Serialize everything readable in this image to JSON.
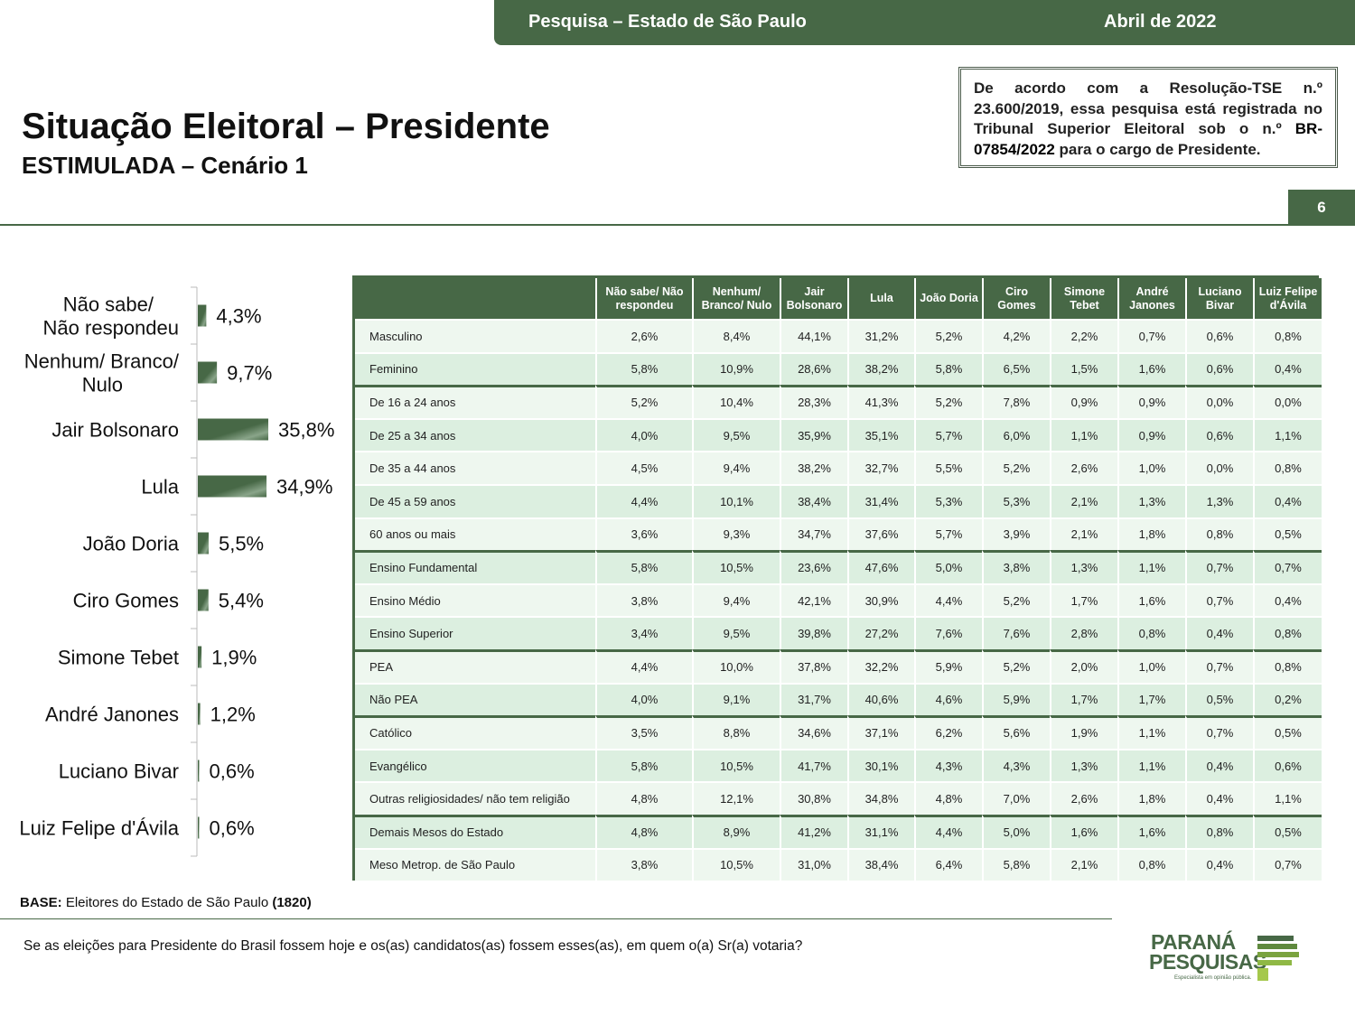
{
  "header": {
    "survey": "Pesquisa – Estado de São Paulo",
    "date": "Abril de 2022"
  },
  "title": "Situação Eleitoral – Presidente",
  "subtitle": "ESTIMULADA – Cenário 1",
  "tse": {
    "text1": "De acordo com a Resolução-TSE n.º 23.600/2019, essa pesquisa está registrada no Tribunal Superior Eleitoral sob o n.º ",
    "number": "BR-07854/2022",
    "text2": " para o cargo de Presidente."
  },
  "page_number": "6",
  "chart_data": {
    "type": "bar",
    "orientation": "horizontal",
    "categories": [
      [
        "Não sabe/",
        "Não respondeu"
      ],
      [
        "Nenhum/ Branco/",
        "Nulo"
      ],
      [
        "Jair Bolsonaro"
      ],
      [
        "Lula"
      ],
      [
        "João Doria"
      ],
      [
        "Ciro Gomes"
      ],
      [
        "Simone Tebet"
      ],
      [
        "André Janones"
      ],
      [
        "Luciano Bivar"
      ],
      [
        "Luiz Felipe d'Ávila"
      ]
    ],
    "values": [
      4.3,
      9.7,
      35.8,
      34.9,
      5.5,
      5.4,
      1.9,
      1.2,
      0.6,
      0.6
    ],
    "value_labels": [
      "4,3%",
      "9,7%",
      "35,8%",
      "34,9%",
      "5,5%",
      "5,4%",
      "1,9%",
      "1,2%",
      "0,6%",
      "0,6%"
    ],
    "bar_color": "#476846"
  },
  "table": {
    "columns": [
      [
        "Não sabe/ Não",
        "respondeu"
      ],
      [
        "Nenhum/",
        "Branco/ Nulo"
      ],
      [
        "Jair",
        "Bolsonaro"
      ],
      [
        "Lula"
      ],
      [
        "João Doria"
      ],
      [
        "Ciro",
        "Gomes"
      ],
      [
        "Simone",
        "Tebet"
      ],
      [
        "André",
        "Janones"
      ],
      [
        "Luciano",
        "Bivar"
      ],
      [
        "Luiz Felipe",
        "d'Ávila"
      ]
    ],
    "rows": [
      {
        "label": "Masculino",
        "values": [
          "2,6%",
          "8,4%",
          "44,1%",
          "31,2%",
          "5,2%",
          "4,2%",
          "2,2%",
          "0,7%",
          "0,6%",
          "0,8%"
        ]
      },
      {
        "label": "Feminino",
        "values": [
          "5,8%",
          "10,9%",
          "28,6%",
          "38,2%",
          "5,8%",
          "6,5%",
          "1,5%",
          "1,6%",
          "0,6%",
          "0,4%"
        ]
      },
      {
        "label": "De 16 a 24 anos",
        "group_start": true,
        "values": [
          "5,2%",
          "10,4%",
          "28,3%",
          "41,3%",
          "5,2%",
          "7,8%",
          "0,9%",
          "0,9%",
          "0,0%",
          "0,0%"
        ]
      },
      {
        "label": "De 25 a 34 anos",
        "values": [
          "4,0%",
          "9,5%",
          "35,9%",
          "35,1%",
          "5,7%",
          "6,0%",
          "1,1%",
          "0,9%",
          "0,6%",
          "1,1%"
        ]
      },
      {
        "label": "De 35 a 44 anos",
        "values": [
          "4,5%",
          "9,4%",
          "38,2%",
          "32,7%",
          "5,5%",
          "5,2%",
          "2,6%",
          "1,0%",
          "0,0%",
          "0,8%"
        ]
      },
      {
        "label": "De 45 a 59 anos",
        "values": [
          "4,4%",
          "10,1%",
          "38,4%",
          "31,4%",
          "5,3%",
          "5,3%",
          "2,1%",
          "1,3%",
          "1,3%",
          "0,4%"
        ]
      },
      {
        "label": "60 anos ou mais",
        "values": [
          "3,6%",
          "9,3%",
          "34,7%",
          "37,6%",
          "5,7%",
          "3,9%",
          "2,1%",
          "1,8%",
          "0,8%",
          "0,5%"
        ]
      },
      {
        "label": "Ensino Fundamental",
        "group_start": true,
        "values": [
          "5,8%",
          "10,5%",
          "23,6%",
          "47,6%",
          "5,0%",
          "3,8%",
          "1,3%",
          "1,1%",
          "0,7%",
          "0,7%"
        ]
      },
      {
        "label": "Ensino Médio",
        "values": [
          "3,8%",
          "9,4%",
          "42,1%",
          "30,9%",
          "4,4%",
          "5,2%",
          "1,7%",
          "1,6%",
          "0,7%",
          "0,4%"
        ]
      },
      {
        "label": "Ensino Superior",
        "values": [
          "3,4%",
          "9,5%",
          "39,8%",
          "27,2%",
          "7,6%",
          "7,6%",
          "2,8%",
          "0,8%",
          "0,4%",
          "0,8%"
        ]
      },
      {
        "label": "PEA",
        "group_start": true,
        "values": [
          "4,4%",
          "10,0%",
          "37,8%",
          "32,2%",
          "5,9%",
          "5,2%",
          "2,0%",
          "1,0%",
          "0,7%",
          "0,8%"
        ]
      },
      {
        "label": "Não PEA",
        "values": [
          "4,0%",
          "9,1%",
          "31,7%",
          "40,6%",
          "4,6%",
          "5,9%",
          "1,7%",
          "1,7%",
          "0,5%",
          "0,2%"
        ]
      },
      {
        "label": "Católico",
        "group_start": true,
        "values": [
          "3,5%",
          "8,8%",
          "34,6%",
          "37,1%",
          "6,2%",
          "5,6%",
          "1,9%",
          "1,1%",
          "0,7%",
          "0,5%"
        ]
      },
      {
        "label": "Evangélico",
        "values": [
          "5,8%",
          "10,5%",
          "41,7%",
          "30,1%",
          "4,3%",
          "4,3%",
          "1,3%",
          "1,1%",
          "0,4%",
          "0,6%"
        ]
      },
      {
        "label": "Outras religiosidades/ não tem religião",
        "values": [
          "4,8%",
          "12,1%",
          "30,8%",
          "34,8%",
          "4,8%",
          "7,0%",
          "2,6%",
          "1,8%",
          "0,4%",
          "1,1%"
        ]
      },
      {
        "label": "Demais Mesos do Estado",
        "group_start": true,
        "values": [
          "4,8%",
          "8,9%",
          "41,2%",
          "31,1%",
          "4,4%",
          "5,0%",
          "1,6%",
          "1,6%",
          "0,8%",
          "0,5%"
        ]
      },
      {
        "label": "Meso Metrop. de São Paulo",
        "values": [
          "3,8%",
          "10,5%",
          "31,0%",
          "38,4%",
          "6,4%",
          "5,8%",
          "2,1%",
          "0,8%",
          "0,4%",
          "0,7%"
        ]
      }
    ]
  },
  "base": {
    "label": "BASE:",
    "text": " Eleitores do Estado de São Paulo ",
    "count": "(1820)"
  },
  "question": "Se as eleições para Presidente do Brasil fossem hoje e os(as) candidatos(as) fossem esses(as), em quem o(a) Sr(a) votaria?",
  "logo": {
    "line1": "PARANÁ",
    "line2": "PESQUISAS",
    "tagline": "Especialista em opinião pública."
  }
}
